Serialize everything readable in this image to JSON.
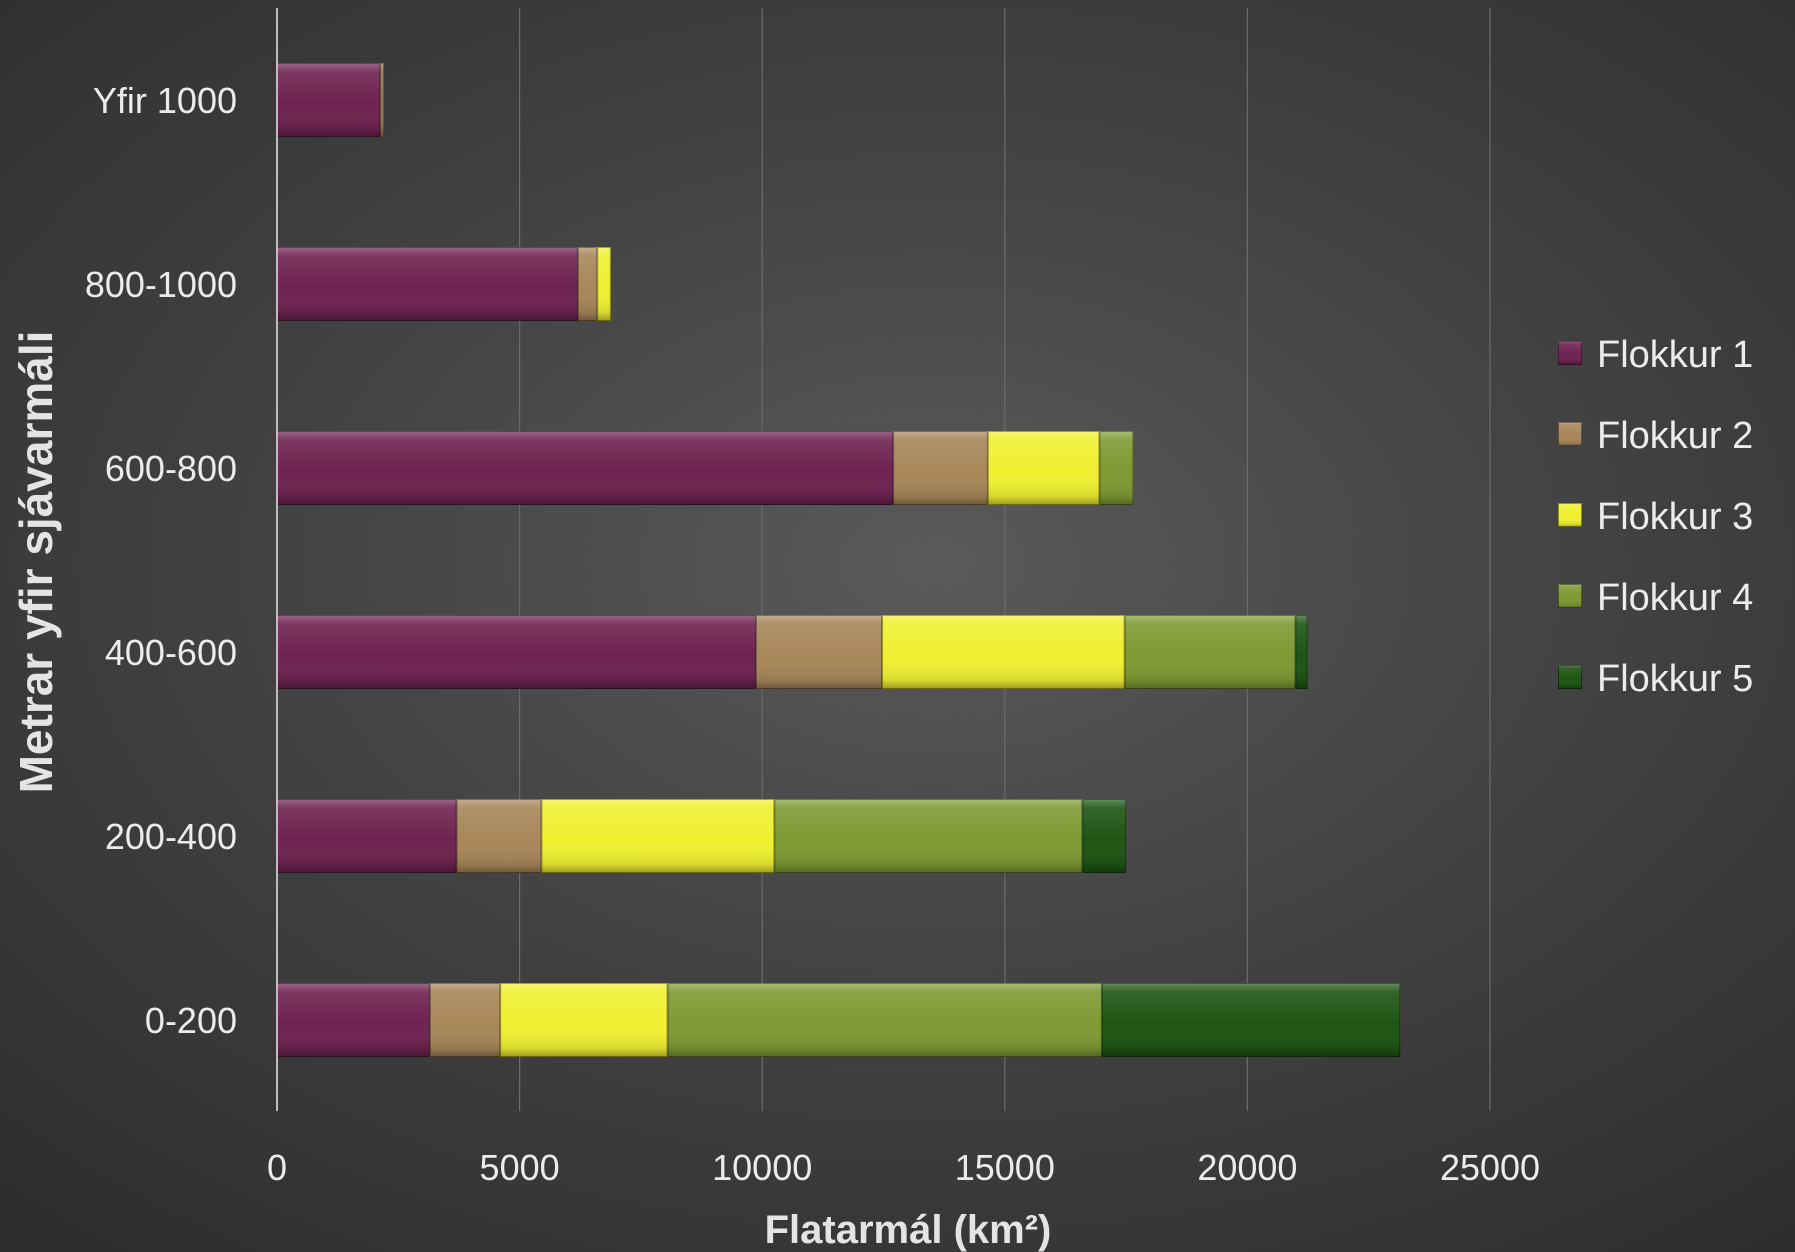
{
  "chart_data": {
    "type": "bar",
    "orientation": "horizontal",
    "stacked": true,
    "title": "",
    "xlabel": "Flatarmál (km²)",
    "ylabel": "Metrar yfir sjávarmáli",
    "xlim": [
      0,
      25000
    ],
    "x_ticks": [
      "0",
      "5000",
      "10000",
      "15000",
      "20000",
      "25000"
    ],
    "categories": [
      "0-200",
      "200-400",
      "400-600",
      "600-800",
      "800-1000",
      "Yfir 1000"
    ],
    "series": [
      {
        "name": "Flokkur 1",
        "color": "#6e2350",
        "values": [
          3150,
          3700,
          9870,
          12700,
          6200,
          2130
        ]
      },
      {
        "name": "Flokkur 2",
        "color": "#a8875a",
        "values": [
          1450,
          1750,
          2600,
          1950,
          400,
          70
        ]
      },
      {
        "name": "Flokkur 3",
        "color": "#f0f032",
        "values": [
          3450,
          4800,
          5000,
          2300,
          280,
          0
        ]
      },
      {
        "name": "Flokkur 4",
        "color": "#7e9a33",
        "values": [
          8950,
          6350,
          3520,
          700,
          0,
          0
        ]
      },
      {
        "name": "Flokkur 5",
        "color": "#1e5514",
        "values": [
          6150,
          900,
          250,
          0,
          0,
          0
        ]
      }
    ],
    "legend_position": "right",
    "grid": true
  }
}
